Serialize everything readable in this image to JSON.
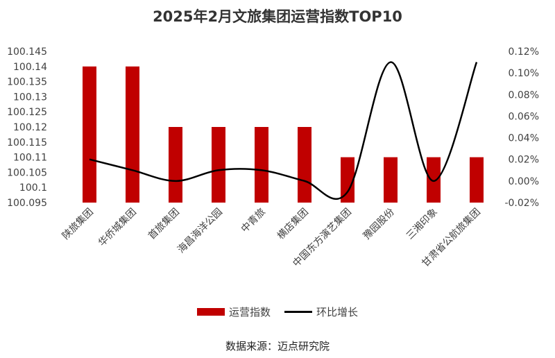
{
  "chart_data": {
    "type": "bar",
    "title": "2025年2月文旅集团运营指数TOP10",
    "categories": [
      "陕旅集团",
      "华侨城集团",
      "首旅集团",
      "海昌海洋公园",
      "中青旅",
      "横店集团",
      "中国东方演艺集团",
      "豫园股份",
      "三湘印象",
      "甘肃省公航旅集团"
    ],
    "series": [
      {
        "name": "运营指数",
        "type": "bar",
        "axis": "left",
        "values": [
          100.14,
          100.14,
          100.12,
          100.12,
          100.12,
          100.12,
          100.11,
          100.11,
          100.11,
          100.11
        ]
      },
      {
        "name": "环比增长",
        "type": "line",
        "axis": "right",
        "values": [
          0.02,
          0.01,
          0.0,
          0.01,
          0.01,
          0.0,
          -0.01,
          0.11,
          0.0,
          0.11
        ]
      }
    ],
    "y_left": {
      "min": 100.095,
      "max": 100.145,
      "ticks": [
        "100.145",
        "100.14",
        "100.135",
        "100.13",
        "100.125",
        "100.12",
        "100.115",
        "100.11",
        "100.105",
        "100.1",
        "100.095"
      ]
    },
    "y_right": {
      "min": -0.02,
      "max": 0.12,
      "ticks": [
        "0.12%",
        "0.10%",
        "0.08%",
        "0.06%",
        "0.04%",
        "0.02%",
        "0.00%",
        "-0.02%"
      ]
    },
    "legend_position": "bottom",
    "grid": false,
    "colors": {
      "bar": "#c00000",
      "line": "#000000"
    }
  },
  "source": "数据来源：迈点研究院"
}
